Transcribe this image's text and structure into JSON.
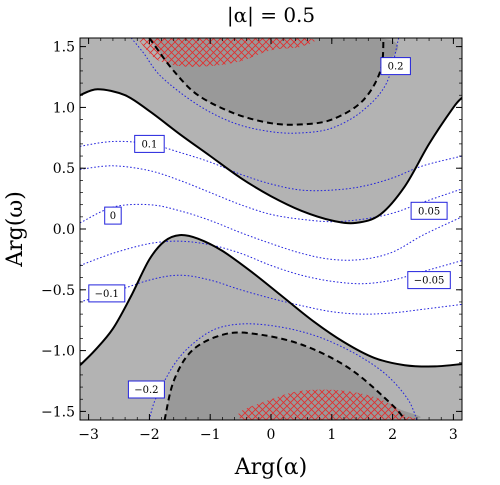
{
  "chart_data": {
    "type": "contour",
    "title": "|α| = 0.5",
    "xlabel": "Arg(α)",
    "ylabel": "Arg(ω)",
    "xlim": [
      -3.14159,
      3.14159
    ],
    "ylim": [
      -1.5708,
      1.5708
    ],
    "x_ticks": [
      -3,
      -2,
      -1,
      0,
      1,
      2,
      3
    ],
    "y_ticks": [
      -1.5,
      -1.0,
      -0.5,
      0.0,
      0.5,
      1.0,
      1.5
    ],
    "x_tick_labels": [
      "−3",
      "−2",
      "−1",
      "0",
      "1",
      "2",
      "3"
    ],
    "y_tick_labels": [
      "−1.5",
      "−1.0",
      "−0.5",
      "0.0",
      "0.5",
      "1.0",
      "1.5"
    ],
    "grid": false,
    "colors": {
      "background_region": "#b3b3b3",
      "white_band": "#ffffff",
      "inner_region": "#999999",
      "solid_contour": "#000000",
      "dashed_contour": "#000000",
      "dotted_contours": "#2222dd",
      "hatch": "#e03030"
    },
    "shaded_regions": [
      {
        "name": "upper-inner",
        "points": [
          [
            -2.0,
            1.5708
          ],
          [
            1.8,
            1.5708
          ],
          [
            1.8,
            1.3
          ],
          [
            1.5,
            1.05
          ],
          [
            1.0,
            0.9
          ],
          [
            0.5,
            0.86
          ],
          [
            0.0,
            0.87
          ],
          [
            -0.6,
            0.95
          ],
          [
            -1.2,
            1.1
          ],
          [
            -1.6,
            1.3
          ],
          [
            -1.9,
            1.5
          ],
          [
            -2.0,
            1.5708
          ]
        ]
      },
      {
        "name": "lower-inner",
        "points": [
          [
            -1.75,
            -1.5708
          ],
          [
            2.2,
            -1.5708
          ],
          [
            2.0,
            -1.45
          ],
          [
            1.3,
            -1.15
          ],
          [
            0.5,
            -0.95
          ],
          [
            -0.3,
            -0.86
          ],
          [
            -0.8,
            -0.87
          ],
          [
            -1.3,
            -1.0
          ],
          [
            -1.6,
            -1.25
          ],
          [
            -1.75,
            -1.5708
          ]
        ]
      }
    ],
    "solid_contours": [
      {
        "name": "upper-boundary",
        "points": [
          [
            -3.14159,
            1.1
          ],
          [
            -2.85,
            1.15
          ],
          [
            -2.4,
            1.1
          ],
          [
            -2.0,
            0.97
          ],
          [
            -1.5,
            0.78
          ],
          [
            -1.0,
            0.6
          ],
          [
            -0.5,
            0.42
          ],
          [
            0.0,
            0.27
          ],
          [
            0.5,
            0.15
          ],
          [
            1.0,
            0.07
          ],
          [
            1.4,
            0.05
          ],
          [
            1.8,
            0.12
          ],
          [
            2.2,
            0.35
          ],
          [
            2.6,
            0.7
          ],
          [
            3.0,
            1.0
          ],
          [
            3.14159,
            1.08
          ]
        ]
      },
      {
        "name": "lower-boundary",
        "points": [
          [
            -3.14159,
            -1.12
          ],
          [
            -2.9,
            -1.0
          ],
          [
            -2.6,
            -0.82
          ],
          [
            -2.3,
            -0.55
          ],
          [
            -2.0,
            -0.25
          ],
          [
            -1.75,
            -0.1
          ],
          [
            -1.5,
            -0.05
          ],
          [
            -1.2,
            -0.08
          ],
          [
            -0.8,
            -0.18
          ],
          [
            -0.3,
            -0.36
          ],
          [
            0.2,
            -0.56
          ],
          [
            0.7,
            -0.76
          ],
          [
            1.2,
            -0.93
          ],
          [
            1.7,
            -1.06
          ],
          [
            2.2,
            -1.12
          ],
          [
            2.7,
            -1.13
          ],
          [
            3.14159,
            -1.11
          ]
        ]
      }
    ],
    "dashed_contours": [
      {
        "name": "upper-dashed",
        "points": [
          [
            -2.0,
            1.5708
          ],
          [
            -1.9,
            1.5
          ],
          [
            -1.6,
            1.3
          ],
          [
            -1.2,
            1.1
          ],
          [
            -0.6,
            0.95
          ],
          [
            0.0,
            0.87
          ],
          [
            0.5,
            0.86
          ],
          [
            1.0,
            0.9
          ],
          [
            1.5,
            1.05
          ],
          [
            1.8,
            1.3
          ],
          [
            1.85,
            1.5708
          ]
        ]
      },
      {
        "name": "lower-dashed",
        "points": [
          [
            -1.75,
            -1.5708
          ],
          [
            -1.6,
            -1.25
          ],
          [
            -1.3,
            -1.0
          ],
          [
            -0.8,
            -0.87
          ],
          [
            -0.3,
            -0.86
          ],
          [
            0.5,
            -0.95
          ],
          [
            1.3,
            -1.15
          ],
          [
            2.0,
            -1.45
          ],
          [
            2.2,
            -1.5708
          ]
        ]
      }
    ],
    "dotted_contours": [
      {
        "level": "0.2",
        "points": [
          [
            -2.3,
            1.5708
          ],
          [
            -2.1,
            1.45
          ],
          [
            -1.8,
            1.25
          ],
          [
            -1.2,
            1.02
          ],
          [
            -0.6,
            0.87
          ],
          [
            0.0,
            0.8
          ],
          [
            0.5,
            0.79
          ],
          [
            1.0,
            0.83
          ],
          [
            1.5,
            0.97
          ],
          [
            1.9,
            1.2
          ],
          [
            2.1,
            1.5708
          ]
        ]
      },
      {
        "level": "0.1",
        "points": [
          [
            -3.14159,
            0.68
          ],
          [
            -2.6,
            0.72
          ],
          [
            -2.0,
            0.7
          ],
          [
            -1.5,
            0.63
          ],
          [
            -1.0,
            0.55
          ],
          [
            -0.5,
            0.45
          ],
          [
            0.0,
            0.37
          ],
          [
            0.5,
            0.32
          ],
          [
            1.0,
            0.32
          ],
          [
            1.5,
            0.35
          ],
          [
            2.0,
            0.42
          ],
          [
            2.5,
            0.52
          ],
          [
            3.14159,
            0.6
          ]
        ]
      },
      {
        "level": "0.05",
        "points": [
          [
            -3.14159,
            0.49
          ],
          [
            -2.6,
            0.52
          ],
          [
            -2.0,
            0.48
          ],
          [
            -1.5,
            0.4
          ],
          [
            -1.0,
            0.3
          ],
          [
            -0.5,
            0.2
          ],
          [
            0.0,
            0.12
          ],
          [
            0.5,
            0.08
          ],
          [
            1.0,
            0.06
          ],
          [
            1.5,
            0.08
          ],
          [
            2.0,
            0.13
          ],
          [
            2.5,
            0.22
          ],
          [
            3.14159,
            0.33
          ]
        ]
      },
      {
        "level": "0",
        "points": [
          [
            -3.14159,
            0.05
          ],
          [
            -2.6,
            0.18
          ],
          [
            -2.0,
            0.2
          ],
          [
            -1.5,
            0.15
          ],
          [
            -1.0,
            0.07
          ],
          [
            -0.5,
            -0.03
          ],
          [
            0.0,
            -0.12
          ],
          [
            0.5,
            -0.2
          ],
          [
            1.0,
            -0.25
          ],
          [
            1.5,
            -0.25
          ],
          [
            2.0,
            -0.19
          ],
          [
            2.5,
            -0.05
          ],
          [
            3.14159,
            0.1
          ]
        ]
      },
      {
        "level": "-0.05",
        "points": [
          [
            -3.14159,
            -0.3
          ],
          [
            -2.6,
            -0.2
          ],
          [
            -2.0,
            -0.12
          ],
          [
            -1.5,
            -0.1
          ],
          [
            -1.0,
            -0.13
          ],
          [
            -0.5,
            -0.2
          ],
          [
            0.0,
            -0.3
          ],
          [
            0.5,
            -0.38
          ],
          [
            1.0,
            -0.43
          ],
          [
            1.5,
            -0.45
          ],
          [
            2.0,
            -0.42
          ],
          [
            2.5,
            -0.35
          ],
          [
            3.14159,
            -0.26
          ]
        ]
      },
      {
        "level": "-0.1",
        "points": [
          [
            -3.14159,
            -0.6
          ],
          [
            -2.6,
            -0.52
          ],
          [
            -2.0,
            -0.42
          ],
          [
            -1.5,
            -0.38
          ],
          [
            -1.0,
            -0.42
          ],
          [
            -0.5,
            -0.5
          ],
          [
            0.0,
            -0.57
          ],
          [
            0.5,
            -0.63
          ],
          [
            1.0,
            -0.68
          ],
          [
            1.5,
            -0.7
          ],
          [
            2.0,
            -0.69
          ],
          [
            2.5,
            -0.66
          ],
          [
            3.14159,
            -0.62
          ]
        ]
      },
      {
        "level": "-0.2",
        "points": [
          [
            -2.0,
            -1.5708
          ],
          [
            -1.9,
            -1.4
          ],
          [
            -1.6,
            -1.12
          ],
          [
            -1.3,
            -0.95
          ],
          [
            -0.9,
            -0.82
          ],
          [
            -0.4,
            -0.78
          ],
          [
            0.2,
            -0.81
          ],
          [
            0.8,
            -0.89
          ],
          [
            1.4,
            -1.03
          ],
          [
            1.9,
            -1.2
          ],
          [
            2.25,
            -1.4
          ],
          [
            2.4,
            -1.5708
          ]
        ]
      }
    ],
    "contour_labels": [
      {
        "text": "0.2",
        "x": 2.05,
        "y": 1.34
      },
      {
        "text": "0.1",
        "x": -2.0,
        "y": 0.7
      },
      {
        "text": "0",
        "x": -2.6,
        "y": 0.11
      },
      {
        "text": "0.05",
        "x": 2.6,
        "y": 0.15
      },
      {
        "text": "−0.05",
        "x": 2.6,
        "y": -0.42
      },
      {
        "text": "−0.1",
        "x": -2.7,
        "y": -0.53
      },
      {
        "text": "−0.2",
        "x": -2.05,
        "y": -1.32
      }
    ],
    "hatched_regions": [
      {
        "name": "upper-hatch",
        "points": [
          [
            -2.2,
            1.5708
          ],
          [
            0.5,
            1.5708
          ],
          [
            0.5,
            1.5
          ],
          [
            0.0,
            1.47
          ],
          [
            -0.5,
            1.38
          ],
          [
            -1.0,
            1.34
          ],
          [
            -1.5,
            1.34
          ],
          [
            -1.9,
            1.4
          ],
          [
            -2.2,
            1.5708
          ]
        ]
      },
      {
        "name": "lower-hatch",
        "points": [
          [
            -0.5,
            -1.5708
          ],
          [
            2.2,
            -1.5708
          ],
          [
            2.2,
            -1.53
          ],
          [
            1.8,
            -1.4
          ],
          [
            1.2,
            -1.33
          ],
          [
            0.5,
            -1.33
          ],
          [
            0.0,
            -1.4
          ],
          [
            -0.5,
            -1.5
          ],
          [
            -0.5,
            -1.5708
          ]
        ]
      }
    ]
  }
}
